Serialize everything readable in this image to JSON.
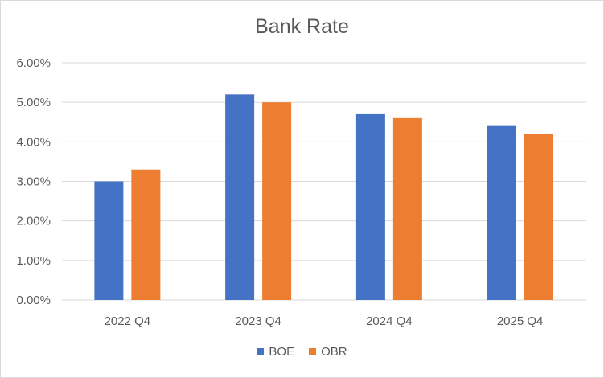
{
  "chart_data": {
    "type": "bar",
    "title": "Bank Rate",
    "categories": [
      "2022 Q4",
      "2023 Q4",
      "2024 Q4",
      "2025 Q4"
    ],
    "series": [
      {
        "name": "BOE",
        "values": [
          3.0,
          5.2,
          4.7,
          4.4
        ],
        "color": "#4472C4"
      },
      {
        "name": "OBR",
        "values": [
          3.3,
          5.0,
          4.6,
          4.2
        ],
        "color": "#ED7D31"
      }
    ],
    "ylim": [
      0,
      6
    ],
    "yticks": [
      "0.00%",
      "1.00%",
      "2.00%",
      "3.00%",
      "4.00%",
      "5.00%",
      "6.00%"
    ],
    "grid": true,
    "legend_position": "bottom"
  }
}
